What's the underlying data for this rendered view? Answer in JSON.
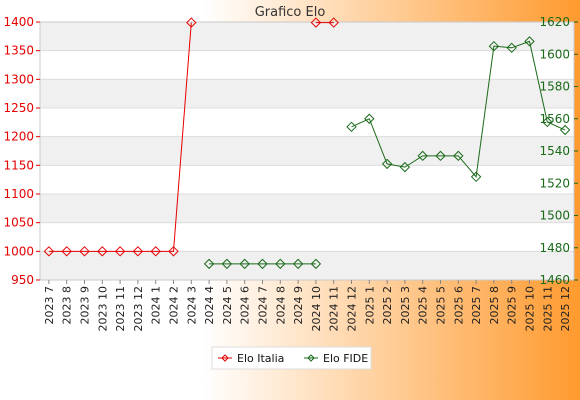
{
  "chart_data": {
    "type": "line",
    "title": "Grafico Elo",
    "categories": [
      "2023 7",
      "2023 8",
      "2023 9",
      "2023 10",
      "2023 11",
      "2023 12",
      "2024 1",
      "2024 2",
      "2024 3",
      "2024 4",
      "2024 5",
      "2024 6",
      "2024 7",
      "2024 8",
      "2024 9",
      "2024 10",
      "2024 11",
      "2024 12",
      "2025 1",
      "2025 2",
      "2025 3",
      "2025 4",
      "2025 5",
      "2025 6",
      "2025 7",
      "2025 8",
      "2025 9",
      "2025 10",
      "2025 11",
      "2025 12"
    ],
    "y_left": {
      "ylim": [
        950,
        1400
      ],
      "ticks": [
        950,
        1000,
        1050,
        1100,
        1150,
        1200,
        1250,
        1300,
        1350,
        1400
      ]
    },
    "y_right": {
      "ylim": [
        1460,
        1620
      ],
      "ticks": [
        1460,
        1480,
        1500,
        1520,
        1540,
        1560,
        1580,
        1600,
        1620
      ]
    },
    "series": [
      {
        "name": "Elo Italia",
        "axis": "left",
        "color": "#e60000",
        "values": [
          1000,
          1000,
          1000,
          1000,
          1000,
          1000,
          1000,
          1000,
          1399,
          null,
          null,
          null,
          null,
          null,
          null,
          1399,
          1399,
          null,
          null,
          null,
          null,
          null,
          null,
          null,
          null,
          null,
          null,
          null,
          null,
          null
        ]
      },
      {
        "name": "Elo FIDE",
        "axis": "right",
        "color": "#1a6a1a",
        "values": [
          null,
          null,
          null,
          null,
          null,
          null,
          null,
          null,
          null,
          1470,
          1470,
          1470,
          1470,
          1470,
          1470,
          1470,
          null,
          1555,
          1560,
          1532,
          1530,
          1537,
          1537,
          1537,
          1524,
          1605,
          1604,
          1608,
          1558,
          1553
        ]
      }
    ],
    "grid": true,
    "legend_position": "bottom"
  }
}
